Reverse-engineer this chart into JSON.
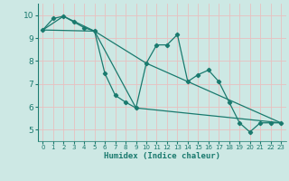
{
  "xlabel": "Humidex (Indice chaleur)",
  "bg_color": "#cde8e4",
  "line_color": "#1a7a6e",
  "grid_color": "#b8d8d4",
  "xlim": [
    -0.5,
    23.5
  ],
  "ylim": [
    4.5,
    10.5
  ],
  "xticks": [
    0,
    1,
    2,
    3,
    4,
    5,
    6,
    7,
    8,
    9,
    10,
    11,
    12,
    13,
    14,
    15,
    16,
    17,
    18,
    19,
    20,
    21,
    22,
    23
  ],
  "yticks": [
    5,
    6,
    7,
    8,
    9,
    10
  ],
  "series1": {
    "x": [
      0,
      1,
      2,
      3,
      4,
      5,
      6,
      7,
      8,
      9,
      10,
      11,
      12,
      13,
      14,
      15,
      16,
      17,
      18,
      19,
      20,
      21,
      22,
      23
    ],
    "y": [
      9.35,
      9.85,
      9.95,
      9.7,
      9.45,
      9.3,
      7.45,
      6.5,
      6.2,
      5.95,
      7.9,
      8.7,
      8.7,
      9.15,
      7.1,
      7.4,
      7.6,
      7.1,
      6.2,
      5.3,
      4.9,
      5.3,
      5.3,
      5.3
    ]
  },
  "series2": {
    "x": [
      0,
      5,
      10,
      23
    ],
    "y": [
      9.35,
      9.3,
      7.9,
      5.3
    ]
  },
  "series3": {
    "x": [
      0,
      2,
      5,
      9,
      23
    ],
    "y": [
      9.35,
      9.95,
      9.3,
      5.95,
      5.3
    ]
  }
}
